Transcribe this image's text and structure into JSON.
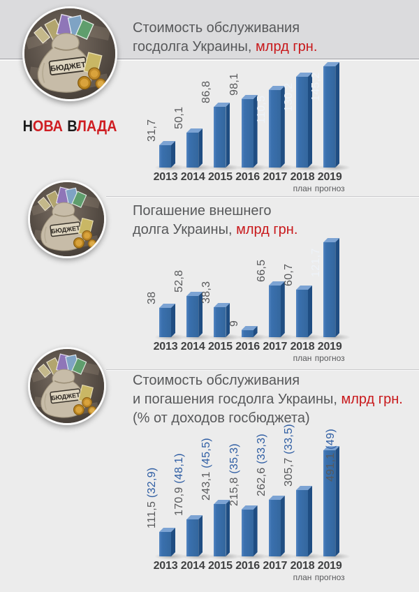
{
  "brand": {
    "logo_parts": [
      "Н",
      "ОВА",
      "В",
      "ЛАДА"
    ]
  },
  "badge": {
    "bag_label": "БЮДЖЕТ"
  },
  "sections": [
    {
      "title": {
        "line1": "Стоимость обслуживания",
        "line2_plain": "госдолга Украины, ",
        "line2_red": "млрд грн.",
        "line3": ""
      }
    },
    {
      "title": {
        "line1": "Погашение внешнего",
        "line2_plain": "долга Украины, ",
        "line2_red": "млрд грн.",
        "line3": ""
      }
    },
    {
      "title": {
        "line1": "Стоимость обслуживания",
        "line2_plain": "и погашения госдолга Украины, ",
        "line2_red": "млрд грн.",
        "line3": "(% от доходов госбюджета)"
      }
    }
  ],
  "chart_data": [
    {
      "type": "bar",
      "title": "Стоимость обслуживания госдолга Украины, млрд грн.",
      "categories": [
        "2013",
        "2014",
        "2015",
        "2016",
        "2017",
        "2018",
        "2019"
      ],
      "category_sublabels": [
        "",
        "",
        "",
        "",
        "",
        "план",
        "прогноз"
      ],
      "values": [
        31.7,
        50.1,
        86.8,
        98.1,
        110.5,
        130.2,
        145.2
      ],
      "value_labels": [
        "31,7",
        "50,1",
        "86,8",
        "98,1",
        "110,5",
        "130,2",
        "145,2"
      ],
      "percent_labels": [
        "",
        "",
        "",
        "",
        "",
        "",
        ""
      ],
      "label_placement": [
        "above",
        "above",
        "above",
        "above",
        "inside",
        "inside",
        "inside"
      ],
      "ylabel": "млрд грн.",
      "grid": false,
      "legend": false
    },
    {
      "type": "bar",
      "title": "Погашение внешнего долга Украины, млрд грн.",
      "categories": [
        "2013",
        "2014",
        "2015",
        "2016",
        "2017",
        "2018",
        "2019"
      ],
      "category_sublabels": [
        "",
        "",
        "",
        "",
        "",
        "план",
        "прогноз"
      ],
      "values": [
        38,
        52.8,
        38.3,
        9,
        66.5,
        60.7,
        121.7
      ],
      "value_labels": [
        "38",
        "52,8",
        "38,3",
        "9",
        "66,5",
        "60,7",
        "121,7"
      ],
      "percent_labels": [
        "",
        "",
        "",
        "",
        "",
        "",
        ""
      ],
      "label_placement": [
        "above",
        "above",
        "above",
        "above",
        "above",
        "above",
        "inside"
      ],
      "ylabel": "млрд грн.",
      "grid": false,
      "legend": false
    },
    {
      "type": "bar",
      "title": "Стоимость обслуживания и погашения госдолга Украины, млрд грн. (% от доходов госбюджета)",
      "categories": [
        "2013",
        "2014",
        "2015",
        "2016",
        "2017",
        "2018",
        "2019"
      ],
      "category_sublabels": [
        "",
        "",
        "",
        "",
        "",
        "план",
        "прогноз"
      ],
      "values": [
        111.5,
        170.9,
        243.1,
        215.8,
        262.6,
        305.7,
        491.1
      ],
      "percent_of_budget_revenue": [
        32.9,
        48.1,
        45.5,
        35.3,
        33.3,
        33.5,
        49
      ],
      "value_labels": [
        "111,5",
        "170,9",
        "243,1",
        "215,8",
        "262,6",
        "305,7",
        "491,1"
      ],
      "percent_labels": [
        "(32,9)",
        "(48,1)",
        "(45,5)",
        "(35,3)",
        "(33,3)",
        "(33,5)",
        "(49)"
      ],
      "label_placement": [
        "above",
        "above",
        "above",
        "above",
        "above",
        "above",
        "beside"
      ],
      "ylabel": "млрд грн.",
      "grid": false,
      "legend": false
    }
  ],
  "colors": {
    "background": "#ececec",
    "topband": "#dbdbdd",
    "bar_face": "#3a70ae",
    "bar_top": "#7ca3d3",
    "bar_side": "#1f4d82",
    "label_gray": "#58595b",
    "label_blue": "#2e5da3",
    "title_red": "#c8181b",
    "logo_red": "#cf1e23",
    "year_dark": "#3f4041"
  }
}
